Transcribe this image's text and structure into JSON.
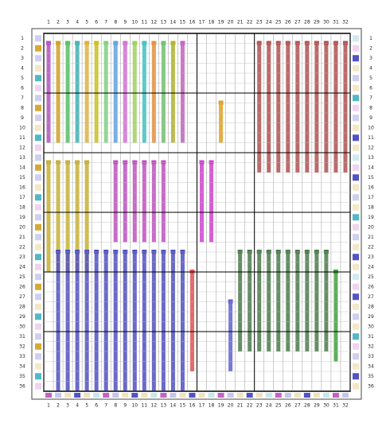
{
  "top_axis": [
    "1",
    "2",
    "3",
    "4",
    "5",
    "6",
    "7",
    "8",
    "9",
    "10",
    "11",
    "12",
    "13",
    "14",
    "15",
    "16",
    "17",
    "18",
    "19",
    "20",
    "21",
    "22",
    "23",
    "24",
    "25",
    "26",
    "27",
    "28",
    "29",
    "30",
    "31",
    "32"
  ],
  "bottom_axis": [
    "1",
    "2",
    "3",
    "4",
    "5",
    "6",
    "7",
    "8",
    "9",
    "10",
    "11",
    "12",
    "13",
    "14",
    "15",
    "16",
    "17",
    "18",
    "19",
    "20",
    "21",
    "22",
    "23",
    "24",
    "25",
    "26",
    "27",
    "28",
    "29",
    "30",
    "31",
    "32"
  ],
  "left_axis": [
    "1",
    "2",
    "3",
    "4",
    "5",
    "6",
    "7",
    "8",
    "9",
    "10",
    "11",
    "12",
    "13",
    "14",
    "15",
    "16",
    "17",
    "18",
    "19",
    "20",
    "21",
    "22",
    "23",
    "24",
    "25",
    "26",
    "27",
    "28",
    "29",
    "30",
    "31",
    "32",
    "33",
    "34",
    "35",
    "36"
  ],
  "right_axis": [
    "1",
    "2",
    "3",
    "4",
    "5",
    "6",
    "7",
    "8",
    "9",
    "10",
    "11",
    "12",
    "13",
    "14",
    "15",
    "16",
    "17",
    "18",
    "19",
    "20",
    "21",
    "22",
    "23",
    "24",
    "25",
    "26",
    "27",
    "28",
    "29",
    "30",
    "31",
    "32",
    "33",
    "34",
    "35",
    "36"
  ]
}
